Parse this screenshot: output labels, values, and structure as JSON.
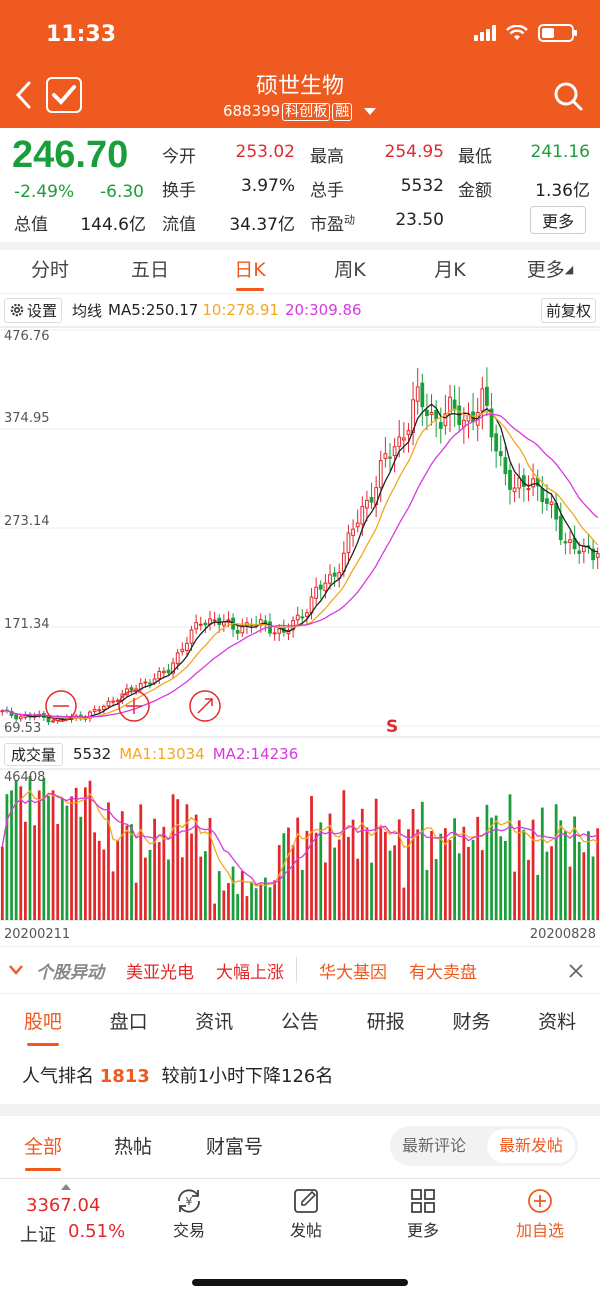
{
  "status": {
    "time": "11:33"
  },
  "header": {
    "title": "硕世生物",
    "code": "688399",
    "board_tag": "科创板",
    "margin_tag": "融",
    "icons": [
      "back-icon",
      "checkmark-icon",
      "search-icon",
      "caret-down-icon"
    ]
  },
  "quote": {
    "price": "246.70",
    "change_pct": "-2.49%",
    "change_amt": "-6.30",
    "rows": [
      [
        {
          "label": "今开",
          "value": "253.02"
        },
        {
          "label": "最高",
          "value": "254.95"
        },
        {
          "label": "最低",
          "value": "241.16"
        }
      ],
      [
        {
          "label": "换手",
          "value": "3.97%"
        },
        {
          "label": "总手",
          "value": "5532"
        },
        {
          "label": "金额",
          "value": "1.36亿"
        }
      ],
      [
        {
          "label": "流值",
          "value": "34.37亿"
        },
        {
          "label": "市盈",
          "value": "23.50"
        }
      ]
    ],
    "total_value_label": "总值",
    "total_value": "144.6亿",
    "pe_superscript": "动",
    "more_label": "更多"
  },
  "period_tabs": [
    "分时",
    "五日",
    "日K",
    "周K",
    "月K",
    "更多"
  ],
  "active_period": "日K",
  "ma_bar": {
    "settings_label": "设置",
    "ma_label": "均线",
    "ma5": "MA5:250.17",
    "ma10": "10:278.91",
    "ma20": "20:309.86",
    "adjust_label": "前复权"
  },
  "price_axis": [
    "476.76",
    "374.95",
    "273.14",
    "171.34",
    "69.53"
  ],
  "chart_markers": {
    "sell_mark": "S"
  },
  "volume_bar": {
    "button_label": "成交量",
    "volume": "5532",
    "ma1": "MA1:13034",
    "ma2": "MA2:14236",
    "max_label": "46408"
  },
  "date_range": {
    "start": "20200211",
    "end": "20200828"
  },
  "colors": {
    "accent": "#ee5a1f",
    "up": "#e3282c",
    "down": "#1a9e3a",
    "ma5": "#222222",
    "ma10": "#f5a623",
    "ma20": "#d63adf"
  },
  "chart_data": {
    "type": "candlestick",
    "y_range": [
      69.53,
      476.76
    ],
    "volume_range": [
      0,
      46408
    ],
    "ma_labels": [
      "MA5",
      "MA10",
      "MA20"
    ],
    "volume_ma_labels": [
      "MA1",
      "MA2"
    ],
    "close_samples": [
      84,
      79,
      80,
      76,
      77,
      80,
      88,
      100,
      108,
      118,
      125,
      155,
      176,
      180,
      168,
      176,
      171,
      166,
      180,
      210,
      220,
      265,
      296,
      340,
      360,
      408,
      385,
      394,
      382,
      405,
      350,
      308,
      326,
      296,
      262,
      248,
      246.7
    ]
  },
  "news_strip": {
    "label": "个股异动",
    "items": [
      "美亚光电",
      "大幅上涨",
      "华大基因",
      "有大卖盘"
    ]
  },
  "sub_tabs": [
    "股吧",
    "盘口",
    "资讯",
    "公告",
    "研报",
    "财务",
    "资料"
  ],
  "active_sub_tab": "股吧",
  "rank": {
    "prefix": "人气排名",
    "value": "1813",
    "suffix": "较前1小时下降126名"
  },
  "feed_tabs": [
    "全部",
    "热帖",
    "财富号"
  ],
  "sort_options": [
    "最新评论",
    "最新发帖"
  ],
  "bottom": {
    "index_price": "3367.04",
    "index_name": "上证",
    "index_pct": "0.51%",
    "nav": [
      {
        "label": "交易",
        "icon": "yuan-exchange-icon"
      },
      {
        "label": "发帖",
        "icon": "edit-icon"
      },
      {
        "label": "更多",
        "icon": "grid-icon"
      },
      {
        "label": "加自选",
        "icon": "plus-circle-icon"
      }
    ]
  }
}
